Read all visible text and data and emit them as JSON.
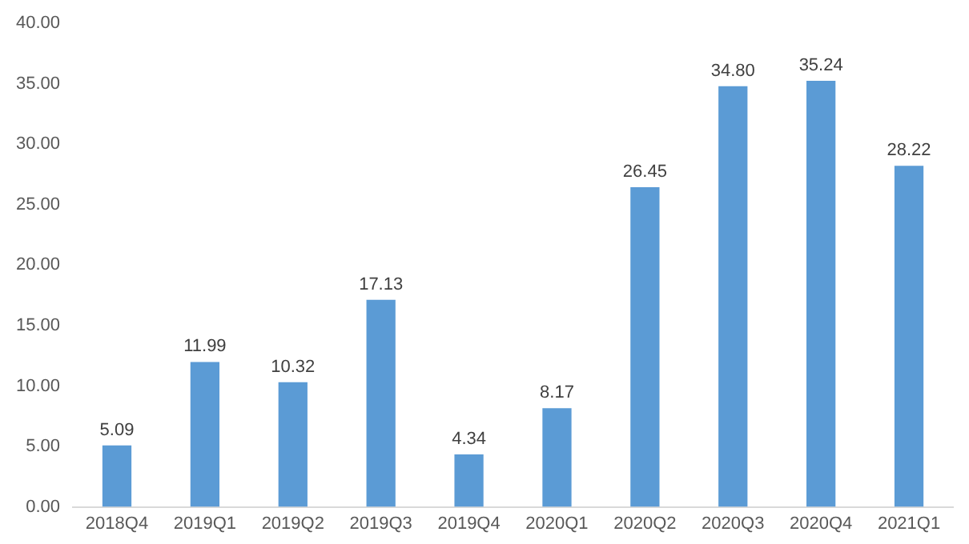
{
  "chart_data": {
    "type": "bar",
    "categories": [
      "2018Q4",
      "2019Q1",
      "2019Q2",
      "2019Q3",
      "2019Q4",
      "2020Q1",
      "2020Q2",
      "2020Q3",
      "2020Q4",
      "2021Q1"
    ],
    "values": [
      5.09,
      11.99,
      10.32,
      17.13,
      4.34,
      8.17,
      26.45,
      34.8,
      35.24,
      28.22
    ],
    "value_labels": [
      "5.09",
      "11.99",
      "10.32",
      "17.13",
      "4.34",
      "8.17",
      "26.45",
      "34.80",
      "35.24",
      "28.22"
    ],
    "color": "#5b9bd5",
    "ylim": [
      0,
      40
    ],
    "yticks": [
      {
        "value": 0,
        "label": "0.00"
      },
      {
        "value": 5,
        "label": "5.00"
      },
      {
        "value": 10,
        "label": "10.00"
      },
      {
        "value": 15,
        "label": "15.00"
      },
      {
        "value": 20,
        "label": "20.00"
      },
      {
        "value": 25,
        "label": "25.00"
      },
      {
        "value": 30,
        "label": "30.00"
      },
      {
        "value": 35,
        "label": "35.00"
      },
      {
        "value": 40,
        "label": "40.00"
      }
    ],
    "grid": false,
    "legend": false
  }
}
